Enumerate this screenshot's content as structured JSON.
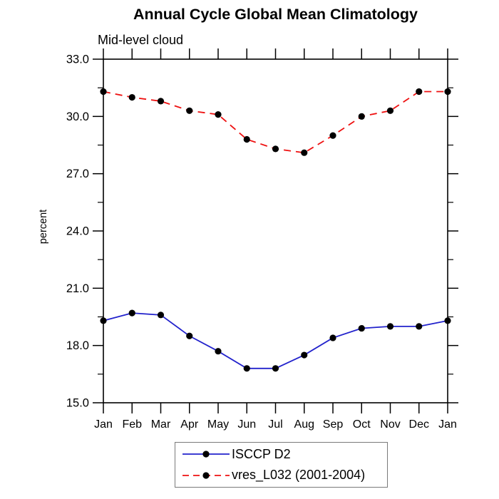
{
  "header": {
    "title": "Annual Cycle Global Mean Climatology",
    "subtitle": "Mid-level cloud"
  },
  "chart_data": {
    "type": "line",
    "title": "Annual Cycle Global Mean Climatology",
    "subtitle": "Mid-level cloud",
    "xlabel": "",
    "ylabel": "percent",
    "x_categories": [
      "Jan",
      "Feb",
      "Mar",
      "Apr",
      "May",
      "Jun",
      "Jul",
      "Aug",
      "Sep",
      "Oct",
      "Nov",
      "Dec",
      "Jan"
    ],
    "ylim": [
      15.0,
      33.0
    ],
    "ytick_major_values": [
      15.0,
      18.0,
      21.0,
      24.0,
      27.0,
      30.0,
      33.0
    ],
    "ytick_major_labels": [
      "15.0",
      "18.0",
      "21.0",
      "24.0",
      "27.0",
      "30.0",
      "33.0"
    ],
    "ytick_minor_values": [
      16.5,
      19.5,
      22.5,
      25.5,
      28.5,
      31.5
    ],
    "grid": false,
    "frame_color": "#000000",
    "legend_position": "bottom-center-boxed",
    "series": [
      {
        "name": "ISCCP D2",
        "line_style": "solid",
        "color": "#2222cc",
        "marker": "filled-circle",
        "marker_color": "#000000",
        "values": [
          19.3,
          19.7,
          19.6,
          18.5,
          17.7,
          16.8,
          16.8,
          17.5,
          18.4,
          18.9,
          19.0,
          19.0,
          19.3
        ]
      },
      {
        "name": "vres_L032 (2001-2004)",
        "line_style": "dashed",
        "color": "#ee1111",
        "marker": "filled-circle",
        "marker_color": "#000000",
        "values": [
          31.3,
          31.0,
          30.8,
          30.3,
          30.1,
          28.8,
          28.3,
          28.1,
          29.0,
          30.0,
          30.3,
          31.3,
          31.3
        ]
      }
    ]
  }
}
